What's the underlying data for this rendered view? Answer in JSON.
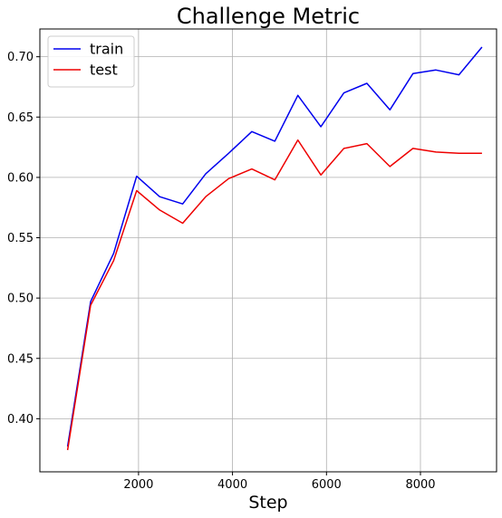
{
  "chart_data": {
    "type": "line",
    "title": "Challenge Metric",
    "xlabel": "Step",
    "ylabel": "",
    "xlim": [
      -100,
      9620
    ],
    "ylim": [
      0.356,
      0.723
    ],
    "xticks": [
      2000,
      4000,
      6000,
      8000
    ],
    "yticks": [
      0.4,
      0.45,
      0.5,
      0.55,
      0.6,
      0.65,
      0.7
    ],
    "ytick_format": 2,
    "grid": true,
    "legend_position": "top-left",
    "x": [
      490,
      980,
      1470,
      1960,
      2450,
      2940,
      3430,
      3920,
      4410,
      4900,
      5390,
      5880,
      6370,
      6860,
      7350,
      7840,
      8330,
      8820,
      9310
    ],
    "series": [
      {
        "name": "train",
        "color": "#0000ee",
        "values": [
          0.377,
          0.497,
          0.537,
          0.601,
          0.584,
          0.578,
          0.603,
          0.62,
          0.638,
          0.63,
          0.668,
          0.642,
          0.67,
          0.678,
          0.656,
          0.686,
          0.689,
          0.685,
          0.708
        ]
      },
      {
        "name": "test",
        "color": "#ee0000",
        "values": [
          0.374,
          0.494,
          0.531,
          0.589,
          0.573,
          0.562,
          0.584,
          0.599,
          0.607,
          0.598,
          0.631,
          0.602,
          0.624,
          0.628,
          0.609,
          0.624,
          0.621,
          0.62,
          0.62
        ]
      }
    ]
  }
}
